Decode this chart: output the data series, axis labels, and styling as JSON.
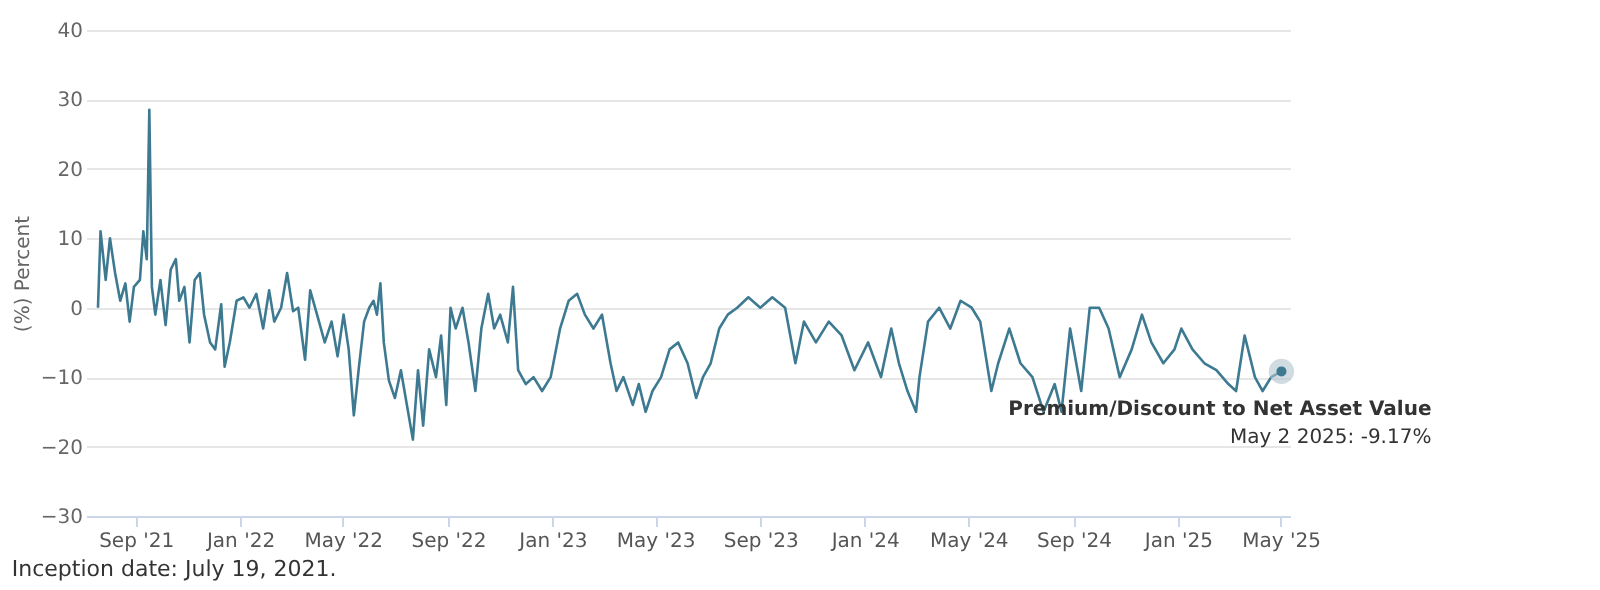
{
  "chart_data": {
    "type": "line",
    "ylabel": "(%) Percent",
    "x": [
      "2021-07-19",
      "2021-07-22",
      "2021-07-28",
      "2021-08-02",
      "2021-08-08",
      "2021-08-14",
      "2021-08-20",
      "2021-08-25",
      "2021-08-30",
      "2021-09-06",
      "2021-09-10",
      "2021-09-14",
      "2021-09-17",
      "2021-09-20",
      "2021-09-24",
      "2021-09-30",
      "2021-10-06",
      "2021-10-12",
      "2021-10-18",
      "2021-10-22",
      "2021-10-28",
      "2021-11-03",
      "2021-11-09",
      "2021-11-15",
      "2021-11-20",
      "2021-11-27",
      "2021-12-03",
      "2021-12-10",
      "2021-12-14",
      "2021-12-20",
      "2021-12-28",
      "2022-01-05",
      "2022-01-12",
      "2022-01-20",
      "2022-01-28",
      "2022-02-04",
      "2022-02-10",
      "2022-02-18",
      "2022-02-25",
      "2022-03-04",
      "2022-03-10",
      "2022-03-18",
      "2022-03-24",
      "2022-04-01",
      "2022-04-10",
      "2022-04-18",
      "2022-04-25",
      "2022-05-02",
      "2022-05-08",
      "2022-05-14",
      "2022-05-20",
      "2022-05-26",
      "2022-06-01",
      "2022-06-06",
      "2022-06-10",
      "2022-06-14",
      "2022-06-18",
      "2022-06-24",
      "2022-07-01",
      "2022-07-08",
      "2022-07-15",
      "2022-07-22",
      "2022-07-28",
      "2022-08-03",
      "2022-08-10",
      "2022-08-18",
      "2022-08-24",
      "2022-08-30",
      "2022-09-04",
      "2022-09-10",
      "2022-09-18",
      "2022-09-25",
      "2022-10-03",
      "2022-10-10",
      "2022-10-18",
      "2022-10-25",
      "2022-11-01",
      "2022-11-10",
      "2022-11-16",
      "2022-11-22",
      "2022-12-01",
      "2022-12-10",
      "2022-12-20",
      "2022-12-30",
      "2023-01-10",
      "2023-01-20",
      "2023-01-30",
      "2023-02-08",
      "2023-02-18",
      "2023-02-28",
      "2023-03-10",
      "2023-03-17",
      "2023-03-25",
      "2023-04-05",
      "2023-04-12",
      "2023-04-20",
      "2023-04-28",
      "2023-05-08",
      "2023-05-18",
      "2023-05-28",
      "2023-06-08",
      "2023-06-18",
      "2023-06-26",
      "2023-07-05",
      "2023-07-15",
      "2023-07-25",
      "2023-08-05",
      "2023-08-18",
      "2023-09-01",
      "2023-09-15",
      "2023-09-30",
      "2023-10-12",
      "2023-10-22",
      "2023-11-05",
      "2023-11-20",
      "2023-12-05",
      "2023-12-20",
      "2024-01-05",
      "2024-01-20",
      "2024-02-01",
      "2024-02-10",
      "2024-02-20",
      "2024-03-01",
      "2024-03-05",
      "2024-03-15",
      "2024-03-28",
      "2024-04-10",
      "2024-04-22",
      "2024-05-05",
      "2024-05-15",
      "2024-05-28",
      "2024-06-05",
      "2024-06-18",
      "2024-07-01",
      "2024-07-15",
      "2024-07-28",
      "2024-08-10",
      "2024-08-18",
      "2024-08-28",
      "2024-09-10",
      "2024-09-20",
      "2024-10-01",
      "2024-10-12",
      "2024-10-25",
      "2024-11-08",
      "2024-11-20",
      "2024-12-01",
      "2024-12-15",
      "2024-12-28",
      "2025-01-05",
      "2025-01-18",
      "2025-02-01",
      "2025-02-15",
      "2025-03-01",
      "2025-03-10",
      "2025-03-20",
      "2025-04-01",
      "2025-04-10",
      "2025-04-20",
      "2025-05-02"
    ],
    "series": [
      {
        "color": "#3d7a92",
        "values": [
          0,
          11,
          4,
          10,
          5,
          1,
          3.5,
          -2,
          3,
          4,
          11,
          7,
          28.5,
          3,
          -1,
          4,
          -2.5,
          5.5,
          7,
          1,
          3,
          -5,
          4,
          5,
          -1,
          -5,
          -6,
          0.5,
          -8.5,
          -5,
          1,
          1.5,
          0,
          2,
          -3,
          2.5,
          -2,
          0,
          5,
          -0.5,
          0,
          -7.5,
          2.5,
          -1,
          -5,
          -2,
          -7,
          -1,
          -6,
          -15.5,
          -8.5,
          -2,
          0,
          1,
          -1,
          3.5,
          -5,
          -10.5,
          -13,
          -9,
          -14,
          -19,
          -9,
          -17,
          -6,
          -10,
          -4,
          -14,
          0,
          -3,
          0,
          -5,
          -12,
          -3,
          2,
          -3,
          -1,
          -5,
          3,
          -9,
          -11,
          -10,
          -12,
          -10,
          -3,
          1,
          2,
          -1,
          -3,
          -1,
          -8,
          -12,
          -10,
          -14,
          -11,
          -15,
          -12,
          -10,
          -6,
          -5,
          -8,
          -13,
          -10,
          -8,
          -3,
          -1,
          0,
          1.5,
          0,
          1.5,
          0,
          -8,
          -2,
          -5,
          -2,
          -4,
          -9,
          -5,
          -10,
          -3,
          -8,
          -12,
          -15,
          -10,
          -2,
          0,
          -3,
          1,
          0,
          -2,
          -12,
          -8,
          -3,
          -8,
          -10,
          -15,
          -11,
          -15,
          -3,
          -12,
          0,
          0,
          -3,
          -10,
          -6,
          -1,
          -5,
          -8,
          -6,
          -3,
          -6,
          -8,
          -9,
          -11,
          -12,
          -4,
          -10,
          -12,
          -10,
          -9.17
        ]
      }
    ],
    "xlim": [
      "2021-07-05",
      "2025-05-12"
    ],
    "xticks": [
      {
        "value": "2021-09-01",
        "label": "Sep '21"
      },
      {
        "value": "2022-01-01",
        "label": "Jan '22"
      },
      {
        "value": "2022-05-01",
        "label": "May '22"
      },
      {
        "value": "2022-09-01",
        "label": "Sep '22"
      },
      {
        "value": "2023-01-01",
        "label": "Jan '23"
      },
      {
        "value": "2023-05-01",
        "label": "May '23"
      },
      {
        "value": "2023-09-01",
        "label": "Sep '23"
      },
      {
        "value": "2024-01-01",
        "label": "Jan '24"
      },
      {
        "value": "2024-05-01",
        "label": "May '24"
      },
      {
        "value": "2024-09-01",
        "label": "Sep '24"
      },
      {
        "value": "2025-01-01",
        "label": "Jan '25"
      },
      {
        "value": "2025-05-01",
        "label": "May '25"
      }
    ],
    "ylim": [
      -30,
      40
    ],
    "yticks": [
      -30,
      -20,
      -10,
      0,
      10,
      20,
      30,
      40
    ],
    "grid": "y",
    "marker": "none",
    "line_style": "solid",
    "annotations": [
      {
        "text": "Premium/Discount to Net Asset Value",
        "x": "2025-05-02",
        "y": -9.17
      },
      {
        "text": "May 2 2025: -9.17%",
        "x": "2025-05-02",
        "y": -9.17
      },
      "Inception date: July 19, 2021."
    ]
  }
}
